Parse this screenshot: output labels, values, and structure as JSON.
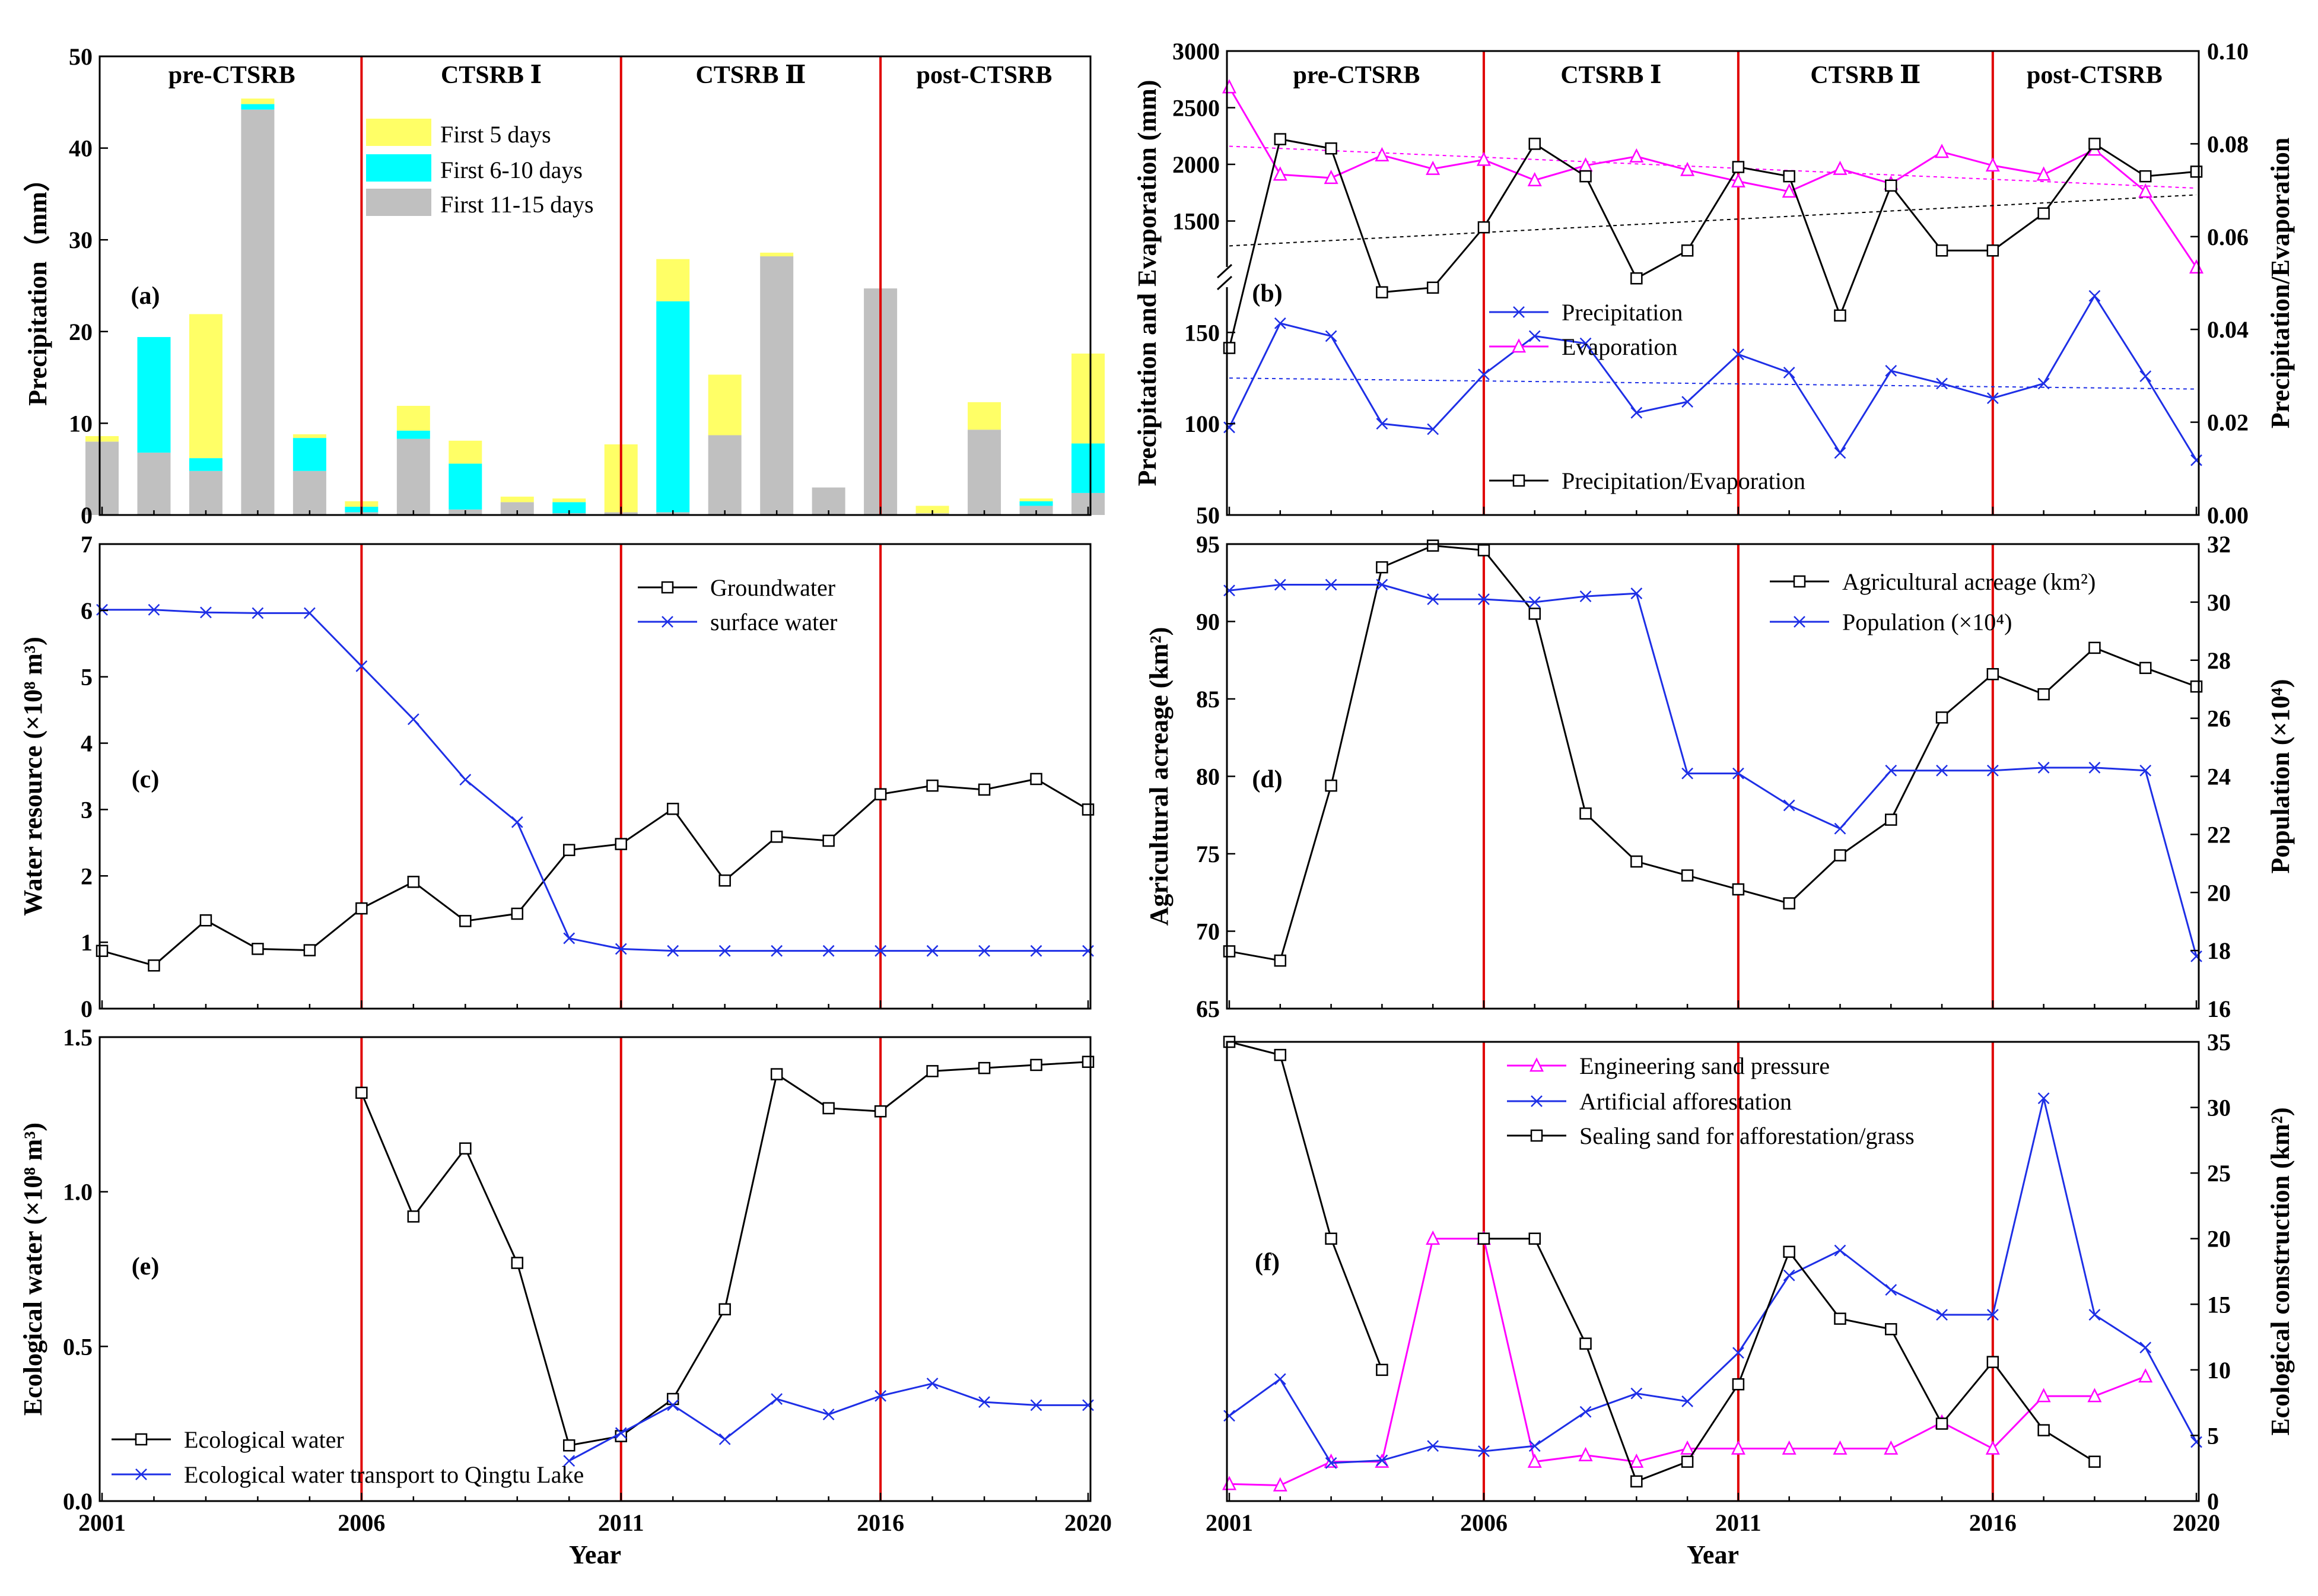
{
  "figure": {
    "eras": [
      "pre-CTSRB",
      "CTSRB Ⅰ",
      "CTSRB Ⅱ",
      "post-CTSRB"
    ],
    "xlabel": "Year",
    "xticks": [
      "2001",
      "2006",
      "2011",
      "2016",
      "2020"
    ],
    "colors": {
      "divider": "#e00000",
      "black": "#000000",
      "blue": "#1e2fe6",
      "magenta": "#ff00ff",
      "yellow": "#ffff66",
      "cyan": "#00ffff",
      "gray": "#c0c0c0"
    }
  },
  "chart_data": [
    {
      "id": "a",
      "panel_label": "(a)",
      "type": "bar",
      "stacked": true,
      "ylabel": "Precipitation（mm）",
      "ylim": [
        0,
        50
      ],
      "yticks": [
        "0",
        "10",
        "20",
        "30",
        "40",
        "50"
      ],
      "x": [
        2001,
        2002,
        2003,
        2004,
        2005,
        2006,
        2007,
        2008,
        2009,
        2010,
        2011,
        2012,
        2013,
        2014,
        2015,
        2016,
        2017,
        2018,
        2019,
        2020
      ],
      "series": [
        {
          "name": "First 11-15 days",
          "color": "#c0c0c0",
          "values": [
            8.0,
            6.8,
            4.8,
            44.2,
            4.8,
            0.3,
            8.3,
            0.6,
            1.4,
            0.2,
            0.3,
            0.3,
            8.7,
            28.2,
            3.0,
            24.7,
            0.2,
            9.3,
            1.0,
            2.4
          ]
        },
        {
          "name": "First 6-10 days",
          "color": "#00ffff",
          "values": [
            0.0,
            12.6,
            1.4,
            0.6,
            3.6,
            0.6,
            0.9,
            5.0,
            0.0,
            1.2,
            0.0,
            23.0,
            0.0,
            0.0,
            0.0,
            0.0,
            0.0,
            0.0,
            0.5,
            5.4
          ]
        },
        {
          "name": "First 5 days",
          "color": "#ffff66",
          "values": [
            0.6,
            0.0,
            15.7,
            0.6,
            0.4,
            0.6,
            2.7,
            2.5,
            0.6,
            0.4,
            7.4,
            4.6,
            6.6,
            0.4,
            0.0,
            0.0,
            0.8,
            3.0,
            0.3,
            9.8
          ]
        }
      ],
      "legend_order": [
        "First 5 days",
        "First 6-10 days",
        "First 11-15 days"
      ]
    },
    {
      "id": "b",
      "panel_label": "(b)",
      "type": "line",
      "ylabel": "Precipitation and Evaporation (mm)",
      "y2label": "Precipitation/Evaporation",
      "ylim": [
        50,
        3000
      ],
      "yaxis_break": [
        180,
        1000
      ],
      "yticks": [
        "50",
        "100",
        "150",
        "1500",
        "2000",
        "2500",
        "3000"
      ],
      "y2lim": [
        0.0,
        0.1
      ],
      "y2ticks": [
        "0.00",
        "0.02",
        "0.04",
        "0.06",
        "0.08",
        "0.10"
      ],
      "x": [
        2001,
        2002,
        2003,
        2004,
        2005,
        2006,
        2007,
        2008,
        2009,
        2010,
        2011,
        2012,
        2013,
        2014,
        2015,
        2016,
        2017,
        2018,
        2019,
        2020
      ],
      "series": [
        {
          "name": "Precipitation",
          "color": "#1e2fe6",
          "marker": "x",
          "axis": "left",
          "values": [
            98,
            155,
            148,
            100,
            97,
            127,
            148,
            144,
            106,
            112,
            138,
            128,
            84,
            129,
            122,
            114,
            122,
            170,
            126,
            80
          ],
          "trend": [
            125,
            119
          ]
        },
        {
          "name": "Evaporation",
          "color": "#ff00ff",
          "marker": "triangle",
          "axis": "left",
          "values": [
            2680,
            1910,
            1880,
            2080,
            1960,
            2040,
            1860,
            1990,
            2070,
            1950,
            1850,
            1760,
            1960,
            1830,
            2110,
            1990,
            1910,
            2130,
            1760,
            1090
          ],
          "trend": [
            2160,
            1790
          ]
        },
        {
          "name": "Precipitation/Evaporation",
          "color": "#000000",
          "marker": "square",
          "axis": "right",
          "values": [
            0.036,
            0.081,
            0.079,
            0.048,
            0.049,
            0.062,
            0.08,
            0.073,
            0.051,
            0.057,
            0.075,
            0.073,
            0.043,
            0.071,
            0.057,
            0.057,
            0.065,
            0.08,
            0.073,
            0.074
          ],
          "trend": [
            0.058,
            0.069
          ]
        }
      ]
    },
    {
      "id": "c",
      "panel_label": "(c)",
      "type": "line",
      "ylabel": "Water resource (×10⁸ m³)",
      "ylim": [
        0,
        7
      ],
      "yticks": [
        "0",
        "1",
        "2",
        "3",
        "4",
        "5",
        "6",
        "7"
      ],
      "x": [
        2001,
        2002,
        2003,
        2004,
        2005,
        2006,
        2007,
        2008,
        2009,
        2010,
        2011,
        2012,
        2013,
        2014,
        2015,
        2016,
        2017,
        2018,
        2019,
        2020
      ],
      "series": [
        {
          "name": "Groundwater",
          "color": "#000000",
          "marker": "square",
          "values": [
            0.87,
            0.65,
            1.33,
            0.9,
            0.88,
            1.51,
            1.91,
            1.32,
            1.43,
            2.39,
            2.48,
            3.01,
            1.93,
            2.59,
            2.53,
            3.23,
            3.36,
            3.3,
            3.46,
            3.0
          ]
        },
        {
          "name": "surface water",
          "color": "#1e2fe6",
          "marker": "x",
          "values": [
            6.01,
            6.01,
            5.97,
            5.96,
            5.96,
            5.16,
            4.36,
            3.45,
            2.81,
            1.06,
            0.9,
            0.87,
            0.87,
            0.87,
            0.87,
            0.87,
            0.87,
            0.87,
            0.87,
            0.87
          ]
        }
      ]
    },
    {
      "id": "d",
      "panel_label": "(d)",
      "type": "line",
      "ylabel": "Agricultural acreage (km²)",
      "y2label": "Population (×10⁴)",
      "ylim": [
        65,
        95
      ],
      "yticks": [
        "65",
        "70",
        "75",
        "80",
        "85",
        "90",
        "95"
      ],
      "y2lim": [
        16,
        32
      ],
      "y2ticks": [
        "16",
        "18",
        "20",
        "22",
        "24",
        "26",
        "28",
        "30",
        "32"
      ],
      "x": [
        2001,
        2002,
        2003,
        2004,
        2005,
        2006,
        2007,
        2008,
        2009,
        2010,
        2011,
        2012,
        2013,
        2014,
        2015,
        2016,
        2017,
        2018,
        2019,
        2020
      ],
      "series": [
        {
          "name": "Agricultural acreage (km²)",
          "color": "#000000",
          "marker": "square",
          "axis": "left",
          "values": [
            68.7,
            68.1,
            79.4,
            93.5,
            94.9,
            94.6,
            90.5,
            77.6,
            74.5,
            73.6,
            72.7,
            71.8,
            74.9,
            77.2,
            83.8,
            86.6,
            85.3,
            88.3,
            87.0,
            85.8
          ]
        },
        {
          "name": "Population (×10⁴)",
          "color": "#1e2fe6",
          "marker": "x",
          "axis": "right",
          "values": [
            30.4,
            30.6,
            30.6,
            30.6,
            30.1,
            30.1,
            30.0,
            30.2,
            30.3,
            24.1,
            24.1,
            23.0,
            22.2,
            24.2,
            24.2,
            24.2,
            24.3,
            24.3,
            24.2,
            17.8
          ]
        }
      ]
    },
    {
      "id": "e",
      "panel_label": "(e)",
      "type": "line",
      "ylabel": "Ecological water (×10⁸ m³)",
      "ylim": [
        0,
        1.5
      ],
      "yticks": [
        "0.0",
        "0.5",
        "1.0",
        "1.5"
      ],
      "x": [
        2001,
        2002,
        2003,
        2004,
        2005,
        2006,
        2007,
        2008,
        2009,
        2010,
        2011,
        2012,
        2013,
        2014,
        2015,
        2016,
        2017,
        2018,
        2019,
        2020
      ],
      "series": [
        {
          "name": "Ecological water",
          "color": "#000000",
          "marker": "square",
          "values": [
            null,
            null,
            null,
            null,
            null,
            1.32,
            0.92,
            1.14,
            0.77,
            0.18,
            0.21,
            0.33,
            0.62,
            1.38,
            1.27,
            1.26,
            1.39,
            1.4,
            1.41,
            1.42
          ]
        },
        {
          "name": "Ecological water transport to Qingtu Lake",
          "color": "#1e2fe6",
          "marker": "x",
          "values": [
            null,
            null,
            null,
            null,
            null,
            null,
            null,
            null,
            null,
            0.13,
            0.22,
            0.31,
            0.2,
            0.33,
            0.28,
            0.34,
            0.38,
            0.32,
            0.31,
            0.31
          ]
        }
      ]
    },
    {
      "id": "f",
      "panel_label": "(f)",
      "type": "line",
      "ylabel": "",
      "y2label": "Ecological construction (km²)",
      "y2lim": [
        0,
        35
      ],
      "y2ticks": [
        "0",
        "5",
        "10",
        "15",
        "20",
        "25",
        "30",
        "35"
      ],
      "x": [
        2001,
        2002,
        2003,
        2004,
        2005,
        2006,
        2007,
        2008,
        2009,
        2010,
        2011,
        2012,
        2013,
        2014,
        2015,
        2016,
        2017,
        2018,
        2019,
        2020
      ],
      "series": [
        {
          "name": "Engineering sand pressure",
          "color": "#ff00ff",
          "marker": "triangle",
          "values": [
            1.3,
            1.2,
            3.0,
            3.0,
            20.0,
            20.0,
            3.0,
            3.5,
            3.0,
            4.0,
            4.0,
            4.0,
            4.0,
            4.0,
            6.0,
            4.0,
            8.0,
            8.0,
            9.5,
            null
          ]
        },
        {
          "name": "Artificial afforestation",
          "color": "#1e2fe6",
          "marker": "x",
          "values": [
            6.5,
            9.3,
            2.9,
            3.1,
            4.2,
            3.8,
            4.2,
            6.8,
            8.2,
            7.6,
            11.3,
            17.2,
            19.1,
            16.1,
            14.2,
            14.2,
            30.7,
            14.2,
            11.7,
            4.5
          ]
        },
        {
          "name": "Sealing sand for afforestation/grass",
          "color": "#000000",
          "marker": "square",
          "values": [
            35.0,
            34.0,
            20.0,
            10.0,
            null,
            20.0,
            20.0,
            12.0,
            1.5,
            3.0,
            8.9,
            19.0,
            13.9,
            13.1,
            5.9,
            10.6,
            5.4,
            3.0,
            null,
            null
          ]
        }
      ]
    }
  ]
}
